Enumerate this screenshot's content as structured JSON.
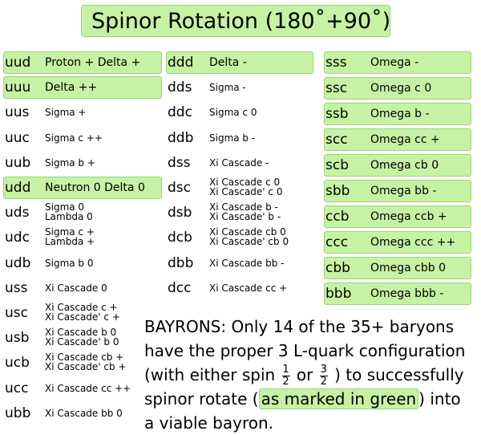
{
  "title": "Spinor Rotation (180˚+90˚)",
  "columns": [
    {
      "rows": [
        {
          "code": "uud",
          "lines": [
            "Proton +  Delta +"
          ],
          "highlight": true
        },
        {
          "code": "uuu",
          "lines": [
            "Delta ++"
          ],
          "highlight": true
        },
        {
          "code": "uus",
          "lines": [
            "Sigma +"
          ],
          "highlight": false
        },
        {
          "code": "uuc",
          "lines": [
            "Sigma c ++"
          ],
          "highlight": false
        },
        {
          "code": "uub",
          "lines": [
            "Sigma b +"
          ],
          "highlight": false
        },
        {
          "code": "udd",
          "lines": [
            "Neutron 0  Delta 0"
          ],
          "highlight": true
        },
        {
          "code": "uds",
          "lines": [
            "Sigma 0",
            "Lambda 0"
          ],
          "highlight": false
        },
        {
          "code": "udc",
          "lines": [
            "Sigma c +",
            "Lambda +"
          ],
          "highlight": false
        },
        {
          "code": "udb",
          "lines": [
            "Sigma b 0"
          ],
          "highlight": false
        },
        {
          "code": "uss",
          "lines": [
            "Xi Cascade 0"
          ],
          "highlight": false
        },
        {
          "code": "usc",
          "lines": [
            "Xi Cascade c +",
            "Xi Cascade' c +"
          ],
          "highlight": false
        },
        {
          "code": "usb",
          "lines": [
            "Xi Cascade b 0",
            "Xi Cascade' b 0"
          ],
          "highlight": false
        },
        {
          "code": "ucb",
          "lines": [
            "Xi Cascade cb +",
            "Xi Cascade' cb +"
          ],
          "highlight": false
        },
        {
          "code": "ucc",
          "lines": [
            "Xi Cascade cc ++"
          ],
          "highlight": false
        },
        {
          "code": "ubb",
          "lines": [
            "Xi Cascade bb 0"
          ],
          "highlight": false
        }
      ]
    },
    {
      "rows": [
        {
          "code": "ddd",
          "lines": [
            "Delta -"
          ],
          "highlight": true
        },
        {
          "code": "dds",
          "lines": [
            "Sigma -"
          ],
          "highlight": false
        },
        {
          "code": "ddc",
          "lines": [
            "Sigma c 0"
          ],
          "highlight": false
        },
        {
          "code": "ddb",
          "lines": [
            "Sigma b -"
          ],
          "highlight": false
        },
        {
          "code": "dss",
          "lines": [
            "Xi Cascade -"
          ],
          "highlight": false
        },
        {
          "code": "dsc",
          "lines": [
            "Xi Cascade c 0",
            "Xi Cascade' c 0"
          ],
          "highlight": false
        },
        {
          "code": "dsb",
          "lines": [
            "Xi Cascade b -",
            "Xi Cascade' b -"
          ],
          "highlight": false
        },
        {
          "code": "dcb",
          "lines": [
            "Xi Cascade cb 0",
            "Xi Cascade' cb 0"
          ],
          "highlight": false
        },
        {
          "code": "dbb",
          "lines": [
            "Xi Cascade bb -"
          ],
          "highlight": false
        },
        {
          "code": "dcc",
          "lines": [
            "Xi Cascade cc +"
          ],
          "highlight": false
        }
      ]
    },
    {
      "rows": [
        {
          "code": "sss",
          "lines": [
            "Omega -"
          ],
          "highlight": true
        },
        {
          "code": "ssc",
          "lines": [
            "Omega c 0"
          ],
          "highlight": true
        },
        {
          "code": "ssb",
          "lines": [
            "Omega b -"
          ],
          "highlight": true
        },
        {
          "code": "scc",
          "lines": [
            "Omega cc +"
          ],
          "highlight": true
        },
        {
          "code": "scb",
          "lines": [
            "Omega cb 0"
          ],
          "highlight": true
        },
        {
          "code": "sbb",
          "lines": [
            "Omega bb -"
          ],
          "highlight": true
        },
        {
          "code": "ccb",
          "lines": [
            "Omega ccb +"
          ],
          "highlight": true
        },
        {
          "code": "ccc",
          "lines": [
            "Omega ccc ++"
          ],
          "highlight": true
        },
        {
          "code": "cbb",
          "lines": [
            "Omega cbb 0"
          ],
          "highlight": true
        },
        {
          "code": "bbb",
          "lines": [
            "Omega bbb -"
          ],
          "highlight": true
        }
      ]
    }
  ],
  "note": {
    "part1": "BAYRONS: Only 14 of the 35+ baryons have the proper 3 L-quark configuration (with either spin",
    "frac1_num": "1",
    "frac1_den": "2",
    "or": "or",
    "frac2_num": "3",
    "frac2_den": "2",
    "part2": ") to successfully spinor rotate (",
    "highlight": "as marked in green",
    "part3": ") into a viable bayron."
  }
}
